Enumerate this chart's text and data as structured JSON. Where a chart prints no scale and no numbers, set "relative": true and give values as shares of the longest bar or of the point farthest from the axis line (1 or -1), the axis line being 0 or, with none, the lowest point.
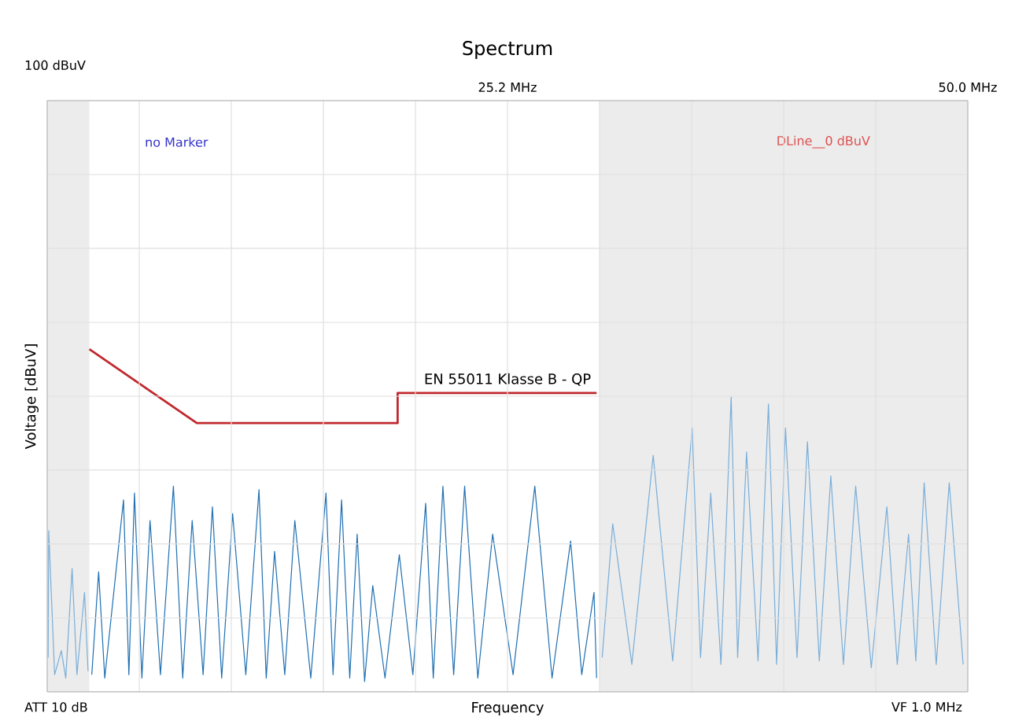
{
  "chart_data": {
    "type": "line",
    "title": "Spectrum",
    "xlabel": "Frequency",
    "ylabel": "Voltage [dBuV]",
    "relative": true,
    "grid": true,
    "xlim": [
      0.4,
      50.0
    ],
    "xticks": [
      {
        "value": 0.4,
        "label": null
      },
      {
        "value": 5.36,
        "label": null
      },
      {
        "value": 10.32,
        "label": null
      },
      {
        "value": 15.28,
        "label": null
      },
      {
        "value": 20.24,
        "label": null
      },
      {
        "value": 25.2,
        "label": "25.2 MHz"
      },
      {
        "value": 30.16,
        "label": null
      },
      {
        "value": 35.12,
        "label": null
      },
      {
        "value": 40.08,
        "label": null
      },
      {
        "value": 45.04,
        "label": null
      },
      {
        "value": 50.0,
        "label": "50.0 MHz"
      }
    ],
    "bands": [
      {
        "axis": "x",
        "from": 0.4,
        "to": 2.67,
        "color": "#ececec"
      },
      {
        "axis": "x",
        "from": 30.16,
        "to": 50.0,
        "color": "#ececec"
      }
    ],
    "annotations": [
      "100 dBuV",
      "no Marker",
      "DLine__0 dBuV",
      "ATT 10 dB",
      "VF 1.0 MHz"
    ],
    "series": [
      {
        "color": "#7aaed8",
        "x": [
          0.45,
          0.48,
          0.8,
          1.16,
          1.4,
          1.74,
          2.0,
          2.41,
          2.6
        ],
        "values": [
          0.1,
          0.47,
          0.05,
          0.12,
          0.04,
          0.36,
          0.05,
          0.29,
          0.06
        ]
      },
      {
        "color": "#1f6fb2",
        "x": [
          2.8,
          3.17,
          3.5,
          4.51,
          4.8,
          5.1,
          5.5,
          5.94,
          6.5,
          7.2,
          7.7,
          8.21,
          8.8,
          9.3,
          9.8,
          10.39,
          11.1,
          11.81,
          12.2,
          12.65,
          13.2,
          13.74,
          14.6,
          15.42,
          15.8,
          16.26,
          16.7,
          17.1,
          17.5,
          17.94,
          18.6,
          19.37,
          20.1,
          20.79,
          21.2,
          21.72,
          22.3,
          22.89,
          23.6,
          24.4,
          25.5,
          26.67,
          27.6,
          28.6,
          29.2,
          29.86,
          30.0
        ],
        "values": [
          0.05,
          0.35,
          0.04,
          0.56,
          0.05,
          0.58,
          0.04,
          0.5,
          0.05,
          0.6,
          0.04,
          0.5,
          0.05,
          0.54,
          0.04,
          0.52,
          0.05,
          0.59,
          0.04,
          0.41,
          0.05,
          0.5,
          0.04,
          0.58,
          0.05,
          0.56,
          0.04,
          0.46,
          0.03,
          0.31,
          0.04,
          0.4,
          0.05,
          0.55,
          0.04,
          0.6,
          0.05,
          0.6,
          0.04,
          0.46,
          0.05,
          0.6,
          0.04,
          0.44,
          0.05,
          0.29,
          0.04
        ]
      },
      {
        "color": "#7aaed8",
        "x": [
          30.3,
          30.87,
          31.9,
          33.05,
          34.1,
          35.15,
          35.6,
          36.15,
          36.7,
          37.25,
          37.6,
          38.08,
          38.7,
          39.26,
          39.7,
          40.18,
          40.8,
          41.36,
          42.0,
          42.62,
          43.3,
          43.96,
          44.8,
          45.64,
          46.2,
          46.81,
          47.2,
          47.65,
          48.3,
          49.0,
          49.75
        ],
        "values": [
          0.1,
          0.49,
          0.08,
          0.69,
          0.09,
          0.77,
          0.1,
          0.58,
          0.08,
          0.86,
          0.1,
          0.7,
          0.09,
          0.84,
          0.08,
          0.77,
          0.1,
          0.73,
          0.09,
          0.63,
          0.08,
          0.6,
          0.07,
          0.54,
          0.08,
          0.46,
          0.09,
          0.61,
          0.08,
          0.61,
          0.08
        ]
      },
      {
        "name": "EN 55011 Klasse B - QP",
        "color": "#c0282d",
        "x": [
          2.67,
          8.46,
          19.28,
          19.28,
          30.0
        ],
        "values": [
          1.0,
          0.784,
          0.784,
          0.872,
          0.872
        ]
      }
    ]
  }
}
